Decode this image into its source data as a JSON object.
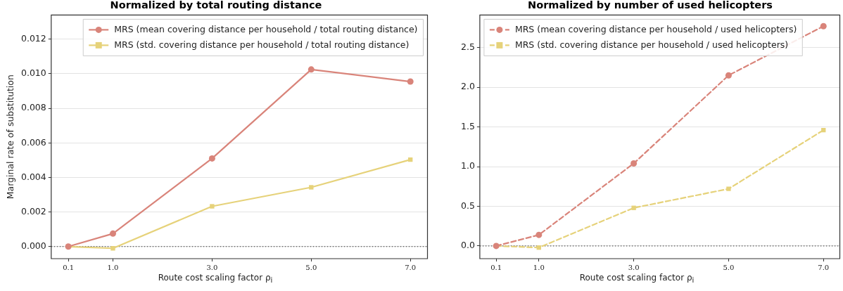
{
  "chart_data": [
    {
      "type": "line",
      "title": "Normalized by total routing distance",
      "xlabel": "Route cost scaling factor ρ$_{i}$",
      "ylabel": "Marginal rate of substitution",
      "x": [
        0.1,
        1.0,
        3.0,
        5.0,
        7.0
      ],
      "series": [
        {
          "name": "MRS (mean covering distance per household / total routing distance)",
          "color": "#d9847a",
          "marker": "circle",
          "values": [
            0,
            0.00075,
            0.0051,
            0.01025,
            0.00955
          ]
        },
        {
          "name": "MRS (std. covering distance per household / total routing distance)",
          "color": "#e6d27a",
          "marker": "square",
          "values": [
            0,
            -0.0001,
            0.00233,
            0.00343,
            0.00503
          ]
        }
      ],
      "xlim": [
        -0.245,
        7.345
      ],
      "xticks": [
        {
          "value": 0.1,
          "label": "0.1"
        },
        {
          "value": 1.0,
          "label": "1.0"
        },
        {
          "value": 3.0,
          "label": "3.0"
        },
        {
          "value": 5.0,
          "label": "5.0"
        },
        {
          "value": 7.0,
          "label": "7.0"
        }
      ],
      "ylim": [
        -0.0007,
        0.0134
      ],
      "yticks": [
        {
          "value": 0,
          "label": "0.000"
        },
        {
          "value": 0.002,
          "label": "0.002"
        },
        {
          "value": 0.004,
          "label": "0.004"
        },
        {
          "value": 0.006,
          "label": "0.006"
        },
        {
          "value": 0.008,
          "label": "0.008"
        },
        {
          "value": 0.01,
          "label": "0.010"
        },
        {
          "value": 0.012,
          "label": "0.012"
        }
      ],
      "ref_lines": [
        {
          "axis": "y",
          "value": 0,
          "color": "#333333",
          "line_style": "dotted"
        }
      ],
      "grid": "y",
      "legend": "top right",
      "line_style": "solid"
    },
    {
      "type": "line",
      "title": "Normalized by number of used helicopters",
      "xlabel": "Route cost scaling factor ρ$_{i}$",
      "x": [
        0.1,
        1.0,
        3.0,
        5.0,
        7.0
      ],
      "series": [
        {
          "name": "MRS (mean covering distance per household / used helicopters)",
          "color": "#d9847a",
          "marker": "circle",
          "values": [
            0,
            0.14,
            1.04,
            2.15,
            2.77
          ]
        },
        {
          "name": "MRS (std. covering distance per household / used helicopters)",
          "color": "#e6d27a",
          "marker": "square",
          "values": [
            0,
            -0.02,
            0.48,
            0.72,
            1.46
          ]
        }
      ],
      "xlim": [
        -0.245,
        7.345
      ],
      "xticks": [
        {
          "value": 0.1,
          "label": "0.1"
        },
        {
          "value": 1.0,
          "label": "1.0"
        },
        {
          "value": 3.0,
          "label": "3.0"
        },
        {
          "value": 5.0,
          "label": "5.0"
        },
        {
          "value": 7.0,
          "label": "7.0"
        }
      ],
      "ylim": [
        -0.16,
        2.91
      ],
      "yticks": [
        {
          "value": 0,
          "label": "0.0"
        },
        {
          "value": 0.5,
          "label": "0.5"
        },
        {
          "value": 1.0,
          "label": "1.0"
        },
        {
          "value": 1.5,
          "label": "1.5"
        },
        {
          "value": 2.0,
          "label": "2.0"
        },
        {
          "value": 2.5,
          "label": "2.5"
        }
      ],
      "ref_lines": [
        {
          "axis": "y",
          "value": 0,
          "color": "#333333",
          "line_style": "dotted"
        }
      ],
      "grid": "y",
      "legend": "top left",
      "line_style": "dashed"
    }
  ]
}
